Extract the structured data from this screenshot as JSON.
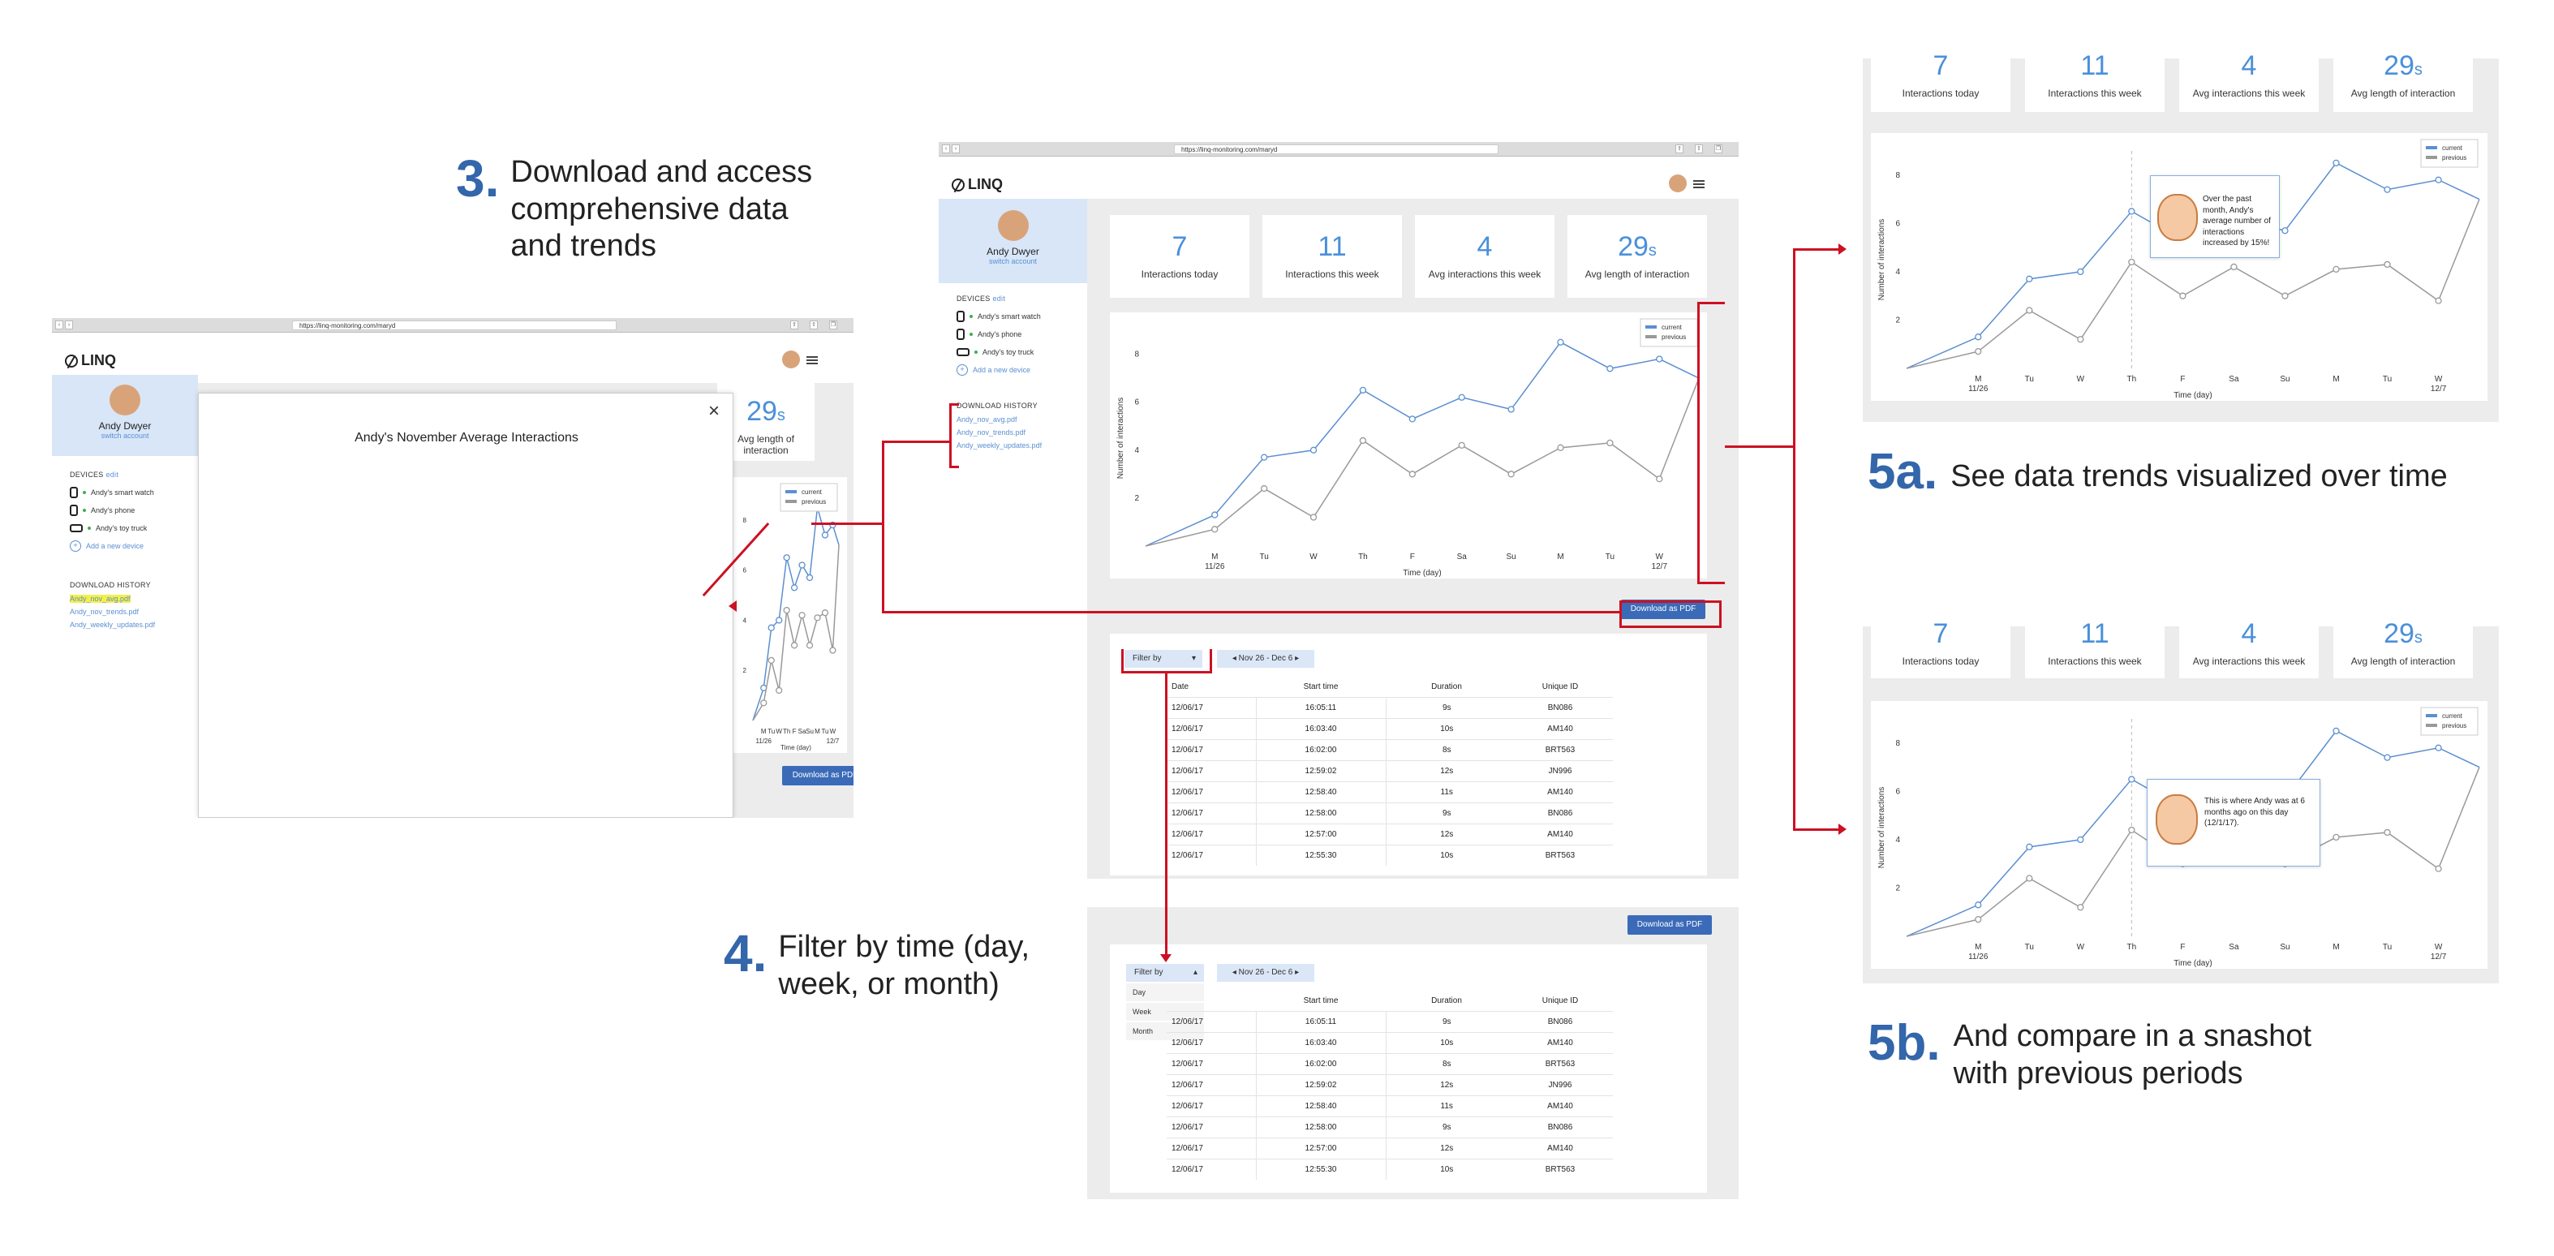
{
  "steps": {
    "s3": {
      "num": "3.",
      "text": "Download and access\ncomprehensive data\nand trends"
    },
    "s4": {
      "num": "4.",
      "text": "Filter by time (day,\nweek, or month)"
    },
    "s5a": {
      "num": "5a.",
      "text": "See data trends visualized over time"
    },
    "s5b": {
      "num": "5b.",
      "text": "And compare in a snashot\nwith previous periods"
    }
  },
  "app": {
    "url": "https://linq-monitoring.com/maryd",
    "logo": "LINQ",
    "user_name": "Andy Dwyer",
    "switch_account": "switch account",
    "devices_heading": "DEVICES",
    "devices_edit": "edit",
    "devices": [
      "Andy's smart watch",
      "Andy's phone",
      "Andy's toy truck"
    ],
    "add_device": "Add a new device",
    "download_heading": "DOWNLOAD HISTORY",
    "downloads": [
      "Andy_nov_avg.pdf",
      "Andy_nov_trends.pdf",
      "Andy_weekly_updates.pdf"
    ],
    "download_btn": "Download as PDF",
    "modal_title": "Andy's November Average Interactions",
    "modal_close": "×",
    "filter_label": "Filter by",
    "date_range": "Nov 26 - Dec 6",
    "filter_options": [
      "Day",
      "Week",
      "Month"
    ]
  },
  "stats": [
    {
      "value": "7",
      "unit": "",
      "label": "Interactions today"
    },
    {
      "value": "11",
      "unit": "",
      "label": "Interactions this week"
    },
    {
      "value": "4",
      "unit": "",
      "label": "Avg interactions this week"
    },
    {
      "value": "29",
      "unit": "s",
      "label": "Avg length of interaction"
    }
  ],
  "table": {
    "headers": [
      "Date",
      "Start time",
      "Duration",
      "Unique ID"
    ],
    "rows": [
      [
        "12/06/17",
        "16:05:11",
        "9s",
        "BN086"
      ],
      [
        "12/06/17",
        "16:03:40",
        "10s",
        "AM140"
      ],
      [
        "12/06/17",
        "16:02:00",
        "8s",
        "BRT563"
      ],
      [
        "12/06/17",
        "12:59:02",
        "12s",
        "JN996"
      ],
      [
        "12/06/17",
        "12:58:40",
        "11s",
        "AM140"
      ],
      [
        "12/06/17",
        "12:58:00",
        "9s",
        "BN086"
      ],
      [
        "12/06/17",
        "12:57:00",
        "12s",
        "AM140"
      ],
      [
        "12/06/17",
        "12:55:30",
        "10s",
        "BRT563"
      ]
    ]
  },
  "tooltips": {
    "a": "Over the past month, Andy's average number of interactions increased by 15%!",
    "b": "This is where Andy was at 6 months ago on this day (12/1/17)."
  },
  "colors": {
    "accent": "#3366aa",
    "current": "#5b8fd1",
    "previous": "#999999",
    "arrow": "#cc1122"
  },
  "chart_data": {
    "type": "line",
    "xlabel": "Time (day)",
    "ylabel": "Number of interactions",
    "ylim": [
      0,
      9
    ],
    "y_ticks": [
      2,
      4,
      6,
      8
    ],
    "categories": [
      "M",
      "Tu",
      "W",
      "Th",
      "F",
      "Sa",
      "Su",
      "M",
      "Tu",
      "W"
    ],
    "date_labels": {
      "0": "11/26",
      "9": "12/7"
    },
    "legend": [
      "current",
      "previous"
    ],
    "legend_position": "top-right",
    "series": [
      {
        "name": "current",
        "values": [
          1.3,
          3.7,
          4.0,
          6.5,
          5.3,
          6.2,
          5.7,
          8.5,
          7.4,
          7.8
        ]
      },
      {
        "name": "previous",
        "values": [
          0.7,
          2.4,
          1.2,
          4.4,
          3.0,
          4.2,
          3.0,
          4.1,
          4.3,
          2.8
        ]
      }
    ],
    "line_start": {
      "current": 0,
      "previous": 0
    },
    "line_end": {
      "current": 7.0,
      "previous": 7.0
    }
  }
}
